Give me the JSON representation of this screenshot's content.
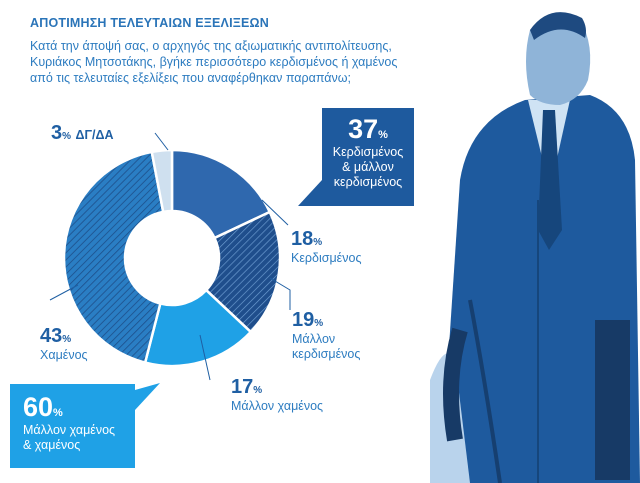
{
  "header": {
    "title": "ΑΠΟΤΙΜΗΣΗ ΤΕΛΕΥΤΑΙΩΝ ΕΞΕΛΙΞΕΩΝ",
    "question_lines": [
      "Κατά την άποψή σας, ο αρχηγός της αξιωματικής αντιπολίτευσης,",
      "Κυριάκος Μητσοτάκης, βγήκε περισσότερο κερδισμένος ή χαμένος",
      "από τις τελευταίες εξελίξεις που αναφέρθηκαν παραπάνω;"
    ]
  },
  "callouts": {
    "win": {
      "value": "37",
      "unit": "%",
      "lines": [
        "Κερδισμένος",
        "& μάλλον",
        "κερδισμένος"
      ],
      "color": "#1e5a9e"
    },
    "lose": {
      "value": "60",
      "unit": "%",
      "lines": [
        "Μάλλον χαμένος",
        "& χαμένος"
      ],
      "color": "#1fa1e6"
    }
  },
  "labels": {
    "kerdismenos": {
      "value": "18",
      "unit": "%",
      "lines": [
        "Κερδισμένος"
      ]
    },
    "mallon_kerdismenos": {
      "value": "19",
      "unit": "%",
      "lines": [
        "Μάλλον",
        "κερδισμένος"
      ]
    },
    "mallon_xamenos": {
      "value": "17",
      "unit": "%",
      "lines": [
        "Μάλλον χαμένος"
      ]
    },
    "xamenos": {
      "value": "43",
      "unit": "%",
      "lines": [
        "Χαμένος"
      ]
    },
    "dk": {
      "value": "3",
      "unit": "%",
      "lines": [
        "ΔΓ/ΔΑ"
      ]
    }
  },
  "chart_data": {
    "type": "pie",
    "donut": true,
    "categories": [
      "Κερδισμένος",
      "Μάλλον κερδισμένος",
      "Μάλλον χαμένος",
      "Χαμένος",
      "ΔΓ/ΔΑ"
    ],
    "values": [
      18,
      19,
      17,
      43,
      3
    ],
    "colors": [
      "#2f68ae",
      "#1f4e8c",
      "#1fa1e6",
      "#2a7ec4",
      "#cfe0ef"
    ],
    "hatched": [
      false,
      true,
      false,
      true,
      false
    ],
    "start": "12 o'clock",
    "direction": "clockwise"
  }
}
